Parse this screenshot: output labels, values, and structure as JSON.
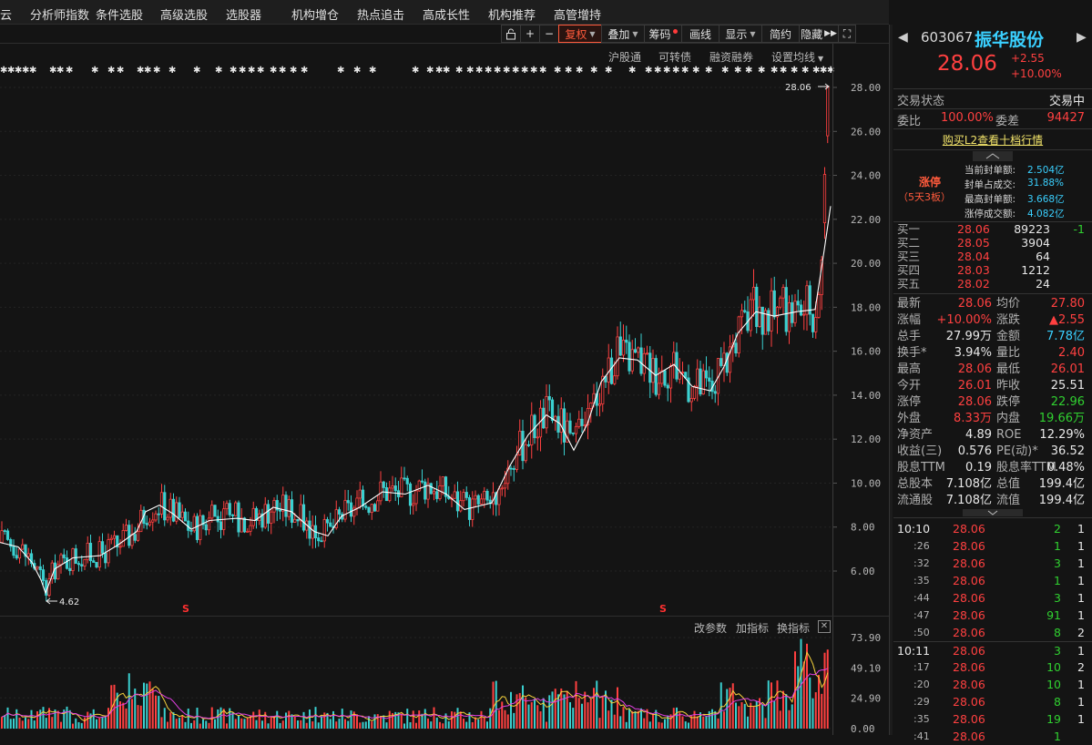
{
  "menu": [
    "云",
    "分析师指数",
    "条件选股",
    "高级选股",
    "选股器",
    "机构增仓",
    "热点追击",
    "高成长性",
    "机构推荐",
    "高管增持"
  ],
  "toolbar": {
    "lock_label": "",
    "plus_label": "+",
    "minus_label": "−",
    "fuquan": "复权",
    "overlay": "叠加",
    "chip": "筹码",
    "draw": "画线",
    "display": "显示",
    "simple": "简约",
    "hide": "隐藏",
    "expand": "⛶"
  },
  "sublinks": [
    "沪股通",
    "可转债",
    "融资融券",
    "设置均线"
  ],
  "price_axis": [
    "28.00",
    "26.00",
    "24.00",
    "22.00",
    "20.00",
    "18.00",
    "16.00",
    "14.00",
    "12.00",
    "10.00",
    "8.00",
    "6.00"
  ],
  "vol_axis": [
    "73.90",
    "49.10",
    "24.90",
    "0.00"
  ],
  "annotations": {
    "high_label": "28.06",
    "low_label": "4.62",
    "s_marker": "S"
  },
  "indicator_controls": [
    "改参数",
    "加指标",
    "换指标"
  ],
  "indicator_close": "✕",
  "stock": {
    "code": "603067",
    "name": "振华股份",
    "price": "28.06",
    "change": "+2.55",
    "change_pct": "+10.00%",
    "prev_arrow": "◀",
    "next_arrow": "▶"
  },
  "trade_status": {
    "label": "交易状态",
    "value": "交易中"
  },
  "weibi": {
    "label": "委比",
    "value": "100.00%",
    "diff_label": "委差",
    "diff_value": "94427"
  },
  "l2_link": "购买L2查看十档行情",
  "limit_up": {
    "tag": "涨停",
    "streak": "（5天3板）",
    "items": [
      {
        "label": "当前封单额:",
        "value": "2.504亿"
      },
      {
        "label": "封单占成交:",
        "value": "31.88%"
      },
      {
        "label": "最高封单额:",
        "value": "3.668亿"
      },
      {
        "label": "涨停成交额:",
        "value": "4.082亿"
      }
    ]
  },
  "bids": [
    {
      "label": "买一",
      "price": "28.06",
      "volume": "89223",
      "change": "-1"
    },
    {
      "label": "买二",
      "price": "28.05",
      "volume": "3904",
      "change": ""
    },
    {
      "label": "买三",
      "price": "28.04",
      "volume": "64",
      "change": ""
    },
    {
      "label": "买四",
      "price": "28.03",
      "volume": "1212",
      "change": ""
    },
    {
      "label": "买五",
      "price": "28.02",
      "volume": "24",
      "change": ""
    }
  ],
  "stats": [
    {
      "l1": "最新",
      "v1": "28.06",
      "c1": "red",
      "l2": "均价",
      "v2": "27.80",
      "c2": "red"
    },
    {
      "l1": "涨幅",
      "v1": "+10.00%",
      "c1": "red",
      "l2": "涨跌",
      "v2": "▲2.55",
      "c2": "red"
    },
    {
      "l1": "总手",
      "v1": "27.99万",
      "c1": "white",
      "l2": "金额",
      "v2": "7.78亿",
      "c2": "cyan"
    },
    {
      "l1": "换手*",
      "v1": "3.94%",
      "c1": "white",
      "l2": "量比",
      "v2": "2.40",
      "c2": "red"
    },
    {
      "l1": "最高",
      "v1": "28.06",
      "c1": "red",
      "l2": "最低",
      "v2": "26.01",
      "c2": "red"
    },
    {
      "l1": "今开",
      "v1": "26.01",
      "c1": "red",
      "l2": "昨收",
      "v2": "25.51",
      "c2": "white"
    },
    {
      "l1": "涨停",
      "v1": "28.06",
      "c1": "red",
      "l2": "跌停",
      "v2": "22.96",
      "c2": "green"
    },
    {
      "l1": "外盘",
      "v1": "8.33万",
      "c1": "red",
      "l2": "内盘",
      "v2": "19.66万",
      "c2": "green"
    },
    {
      "l1": "净资产",
      "v1": "4.89",
      "c1": "white",
      "l2": "ROE",
      "v2": "12.29%",
      "c2": "white"
    },
    {
      "l1": "收益(三)",
      "v1": "0.576",
      "c1": "white",
      "l2": "PE(动)*",
      "v2": "36.52",
      "c2": "white"
    },
    {
      "l1": "股息TTM",
      "v1": "0.19",
      "c1": "white",
      "l2": "股息率TTM",
      "v2": "0.48%",
      "c2": "white"
    },
    {
      "l1": "总股本",
      "v1": "7.108亿",
      "c1": "white",
      "l2": "总值",
      "v2": "199.4亿",
      "c2": "white"
    },
    {
      "l1": "流通股",
      "v1": "7.108亿",
      "c1": "white",
      "l2": "流值",
      "v2": "199.4亿",
      "c2": "white"
    }
  ],
  "ticks": [
    {
      "time": "10:10",
      "price": "28.06",
      "vol": "2",
      "n": "1"
    },
    {
      "time": ":26",
      "price": "28.06",
      "vol": "1",
      "n": "1"
    },
    {
      "time": ":32",
      "price": "28.06",
      "vol": "3",
      "n": "1"
    },
    {
      "time": ":35",
      "price": "28.06",
      "vol": "1",
      "n": "1"
    },
    {
      "time": ":44",
      "price": "28.06",
      "vol": "3",
      "n": "1"
    },
    {
      "time": ":47",
      "price": "28.06",
      "vol": "91",
      "n": "1"
    },
    {
      "time": ":50",
      "price": "28.06",
      "vol": "8",
      "n": "2"
    },
    {
      "time": "10:11",
      "price": "28.06",
      "vol": "3",
      "n": "1"
    },
    {
      "time": ":17",
      "price": "28.06",
      "vol": "10",
      "n": "2"
    },
    {
      "time": ":20",
      "price": "28.06",
      "vol": "10",
      "n": "1"
    },
    {
      "time": ":29",
      "price": "28.06",
      "vol": "8",
      "n": "1"
    },
    {
      "time": ":35",
      "price": "28.06",
      "vol": "19",
      "n": "1"
    },
    {
      "time": ":41",
      "price": "28.06",
      "vol": "1",
      "n": ""
    }
  ],
  "chart_data": {
    "type": "candlestick",
    "price_range": [
      4.6,
      28.06
    ],
    "ma_line": [
      [
        0,
        7.3
      ],
      [
        20,
        7.1
      ],
      [
        35,
        6.4
      ],
      [
        45,
        5.6
      ],
      [
        50,
        5.0
      ],
      [
        60,
        6.1
      ],
      [
        80,
        6.6
      ],
      [
        110,
        6.7
      ],
      [
        130,
        7.2
      ],
      [
        150,
        7.8
      ],
      [
        160,
        8.7
      ],
      [
        175,
        9.0
      ],
      [
        190,
        8.6
      ],
      [
        210,
        7.9
      ],
      [
        230,
        8.3
      ],
      [
        260,
        8.4
      ],
      [
        280,
        8.3
      ],
      [
        300,
        8.9
      ],
      [
        320,
        8.7
      ],
      [
        345,
        7.8
      ],
      [
        360,
        7.6
      ],
      [
        375,
        8.5
      ],
      [
        395,
        8.9
      ],
      [
        420,
        9.6
      ],
      [
        445,
        9.5
      ],
      [
        470,
        9.9
      ],
      [
        490,
        9.5
      ],
      [
        510,
        8.8
      ],
      [
        540,
        9.1
      ],
      [
        560,
        10.8
      ],
      [
        580,
        12.2
      ],
      [
        600,
        13.1
      ],
      [
        615,
        12.7
      ],
      [
        630,
        11.5
      ],
      [
        645,
        12.7
      ],
      [
        660,
        14.6
      ],
      [
        680,
        15.7
      ],
      [
        700,
        15.6
      ],
      [
        720,
        14.9
      ],
      [
        740,
        15.4
      ],
      [
        760,
        14.4
      ],
      [
        780,
        14.2
      ],
      [
        795,
        15.3
      ],
      [
        810,
        16.8
      ],
      [
        830,
        17.8
      ],
      [
        850,
        17.6
      ],
      [
        875,
        17.8
      ],
      [
        895,
        17.9
      ],
      [
        905,
        20.6
      ],
      [
        912,
        22.6
      ]
    ],
    "volume_range": [
      0,
      73.9
    ]
  }
}
